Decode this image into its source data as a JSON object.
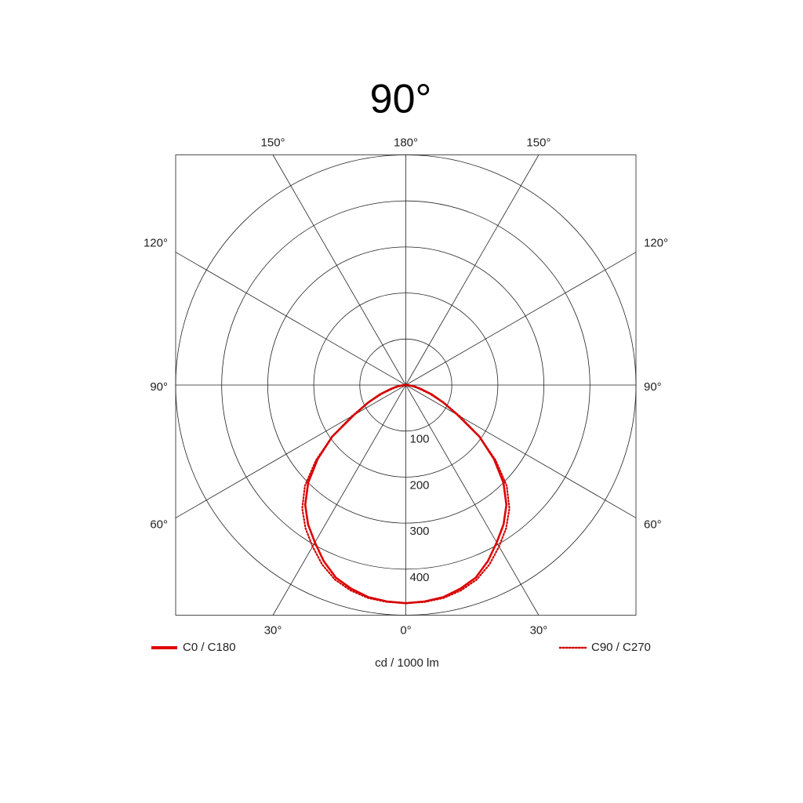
{
  "chart_data": {
    "type": "polar",
    "title": "90°",
    "radial_label": "cd / 1000 lm",
    "x": [
      0,
      5,
      10,
      15,
      20,
      25,
      30,
      35,
      40,
      45,
      50,
      55,
      60,
      65,
      70,
      75,
      80,
      85,
      90
    ],
    "series": [
      {
        "name": "C0 / C180",
        "color": "#e00000",
        "style": "solid",
        "values": [
          474,
          472,
          468,
          458,
          445,
          422,
          395,
          370,
          340,
          300,
          250,
          195,
          130,
          90,
          60,
          35,
          20,
          8,
          0
        ]
      },
      {
        "name": "C90 / C270",
        "color": "#d00000",
        "style": "dotted",
        "values": [
          474,
          473,
          470,
          462,
          450,
          430,
          405,
          380,
          350,
          310,
          255,
          195,
          135,
          90,
          55,
          30,
          15,
          5,
          0
        ]
      }
    ],
    "rlim": [
      0,
      500
    ],
    "rticks": [
      100,
      200,
      300,
      400
    ],
    "angleticks": [
      {
        "value": 0,
        "label": "0°"
      },
      {
        "value": 30,
        "label": "30°"
      },
      {
        "value": 60,
        "label": "60°"
      },
      {
        "value": 90,
        "label": "90°"
      },
      {
        "value": 120,
        "label": "120°"
      },
      {
        "value": 150,
        "label": "150°"
      },
      {
        "value": 180,
        "label": "180°"
      }
    ],
    "grid": true
  }
}
